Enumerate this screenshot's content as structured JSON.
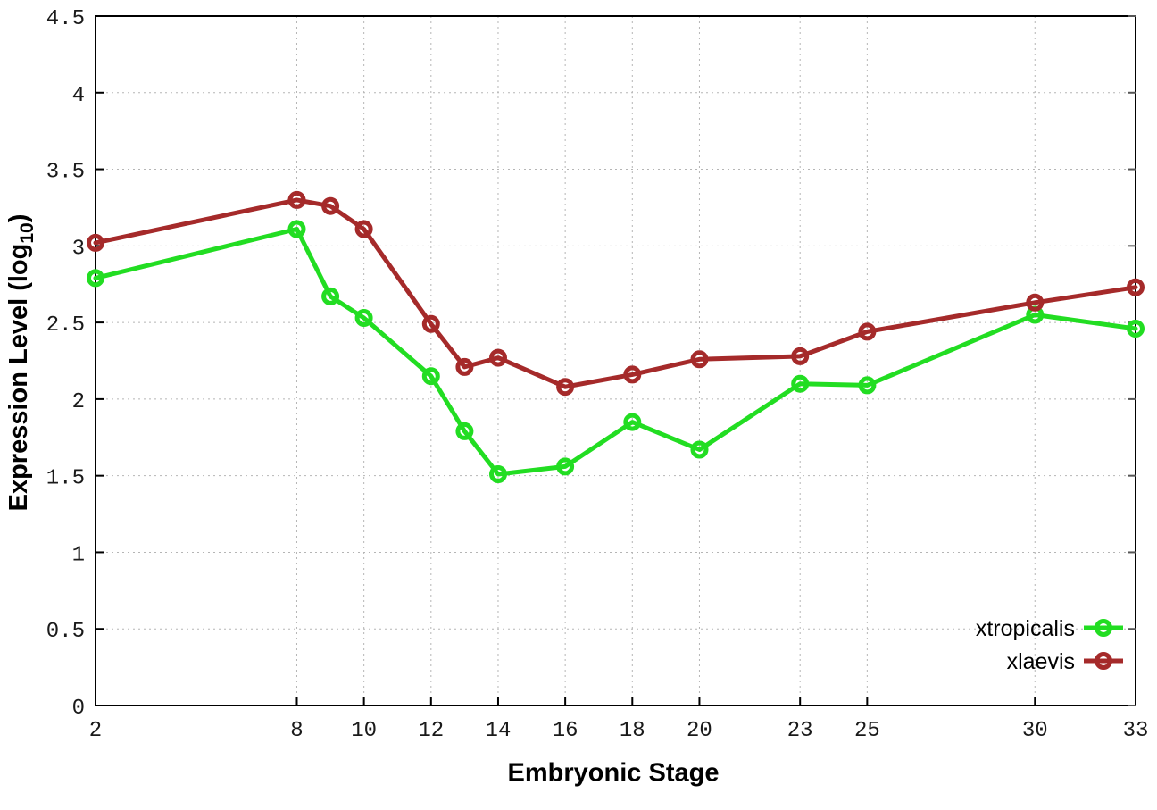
{
  "chart_data": {
    "type": "line",
    "title": "",
    "xlabel": "Embryonic Stage",
    "ylabel": "Expression Level (log10)",
    "ylabel_parts": {
      "main": "Expression Level (log",
      "sub": "10",
      "close": ")"
    },
    "x": [
      2,
      8,
      9,
      10,
      12,
      13,
      14,
      16,
      18,
      20,
      23,
      25,
      30,
      33
    ],
    "series": [
      {
        "name": "xtropicalis",
        "color": "#22dd22",
        "values": [
          2.79,
          3.11,
          2.67,
          2.53,
          2.15,
          1.79,
          1.51,
          1.56,
          1.85,
          1.67,
          2.1,
          2.09,
          2.55,
          2.46
        ]
      },
      {
        "name": "xlaevis",
        "color": "#a52a2a",
        "values": [
          3.02,
          3.3,
          3.26,
          3.11,
          2.49,
          2.21,
          2.27,
          2.08,
          2.16,
          2.26,
          2.28,
          2.44,
          2.63,
          2.73
        ]
      }
    ],
    "xlim": [
      2,
      33
    ],
    "ylim": [
      0,
      4.5
    ],
    "x_ticks": {
      "values": [
        2,
        8,
        10,
        12,
        14,
        16,
        18,
        20,
        23,
        25,
        30,
        33
      ],
      "labels": [
        "2",
        "8",
        "10",
        "12",
        "14",
        "16",
        "18",
        "20",
        "23",
        "25",
        "30",
        "33"
      ]
    },
    "y_ticks": {
      "values": [
        0,
        0.5,
        1,
        1.5,
        2,
        2.5,
        3,
        3.5,
        4,
        4.5
      ],
      "labels": [
        "0",
        "0.5",
        "1",
        "1.5",
        "2",
        "2.5",
        "3",
        "3.5",
        "4",
        "4.5"
      ]
    },
    "grid": true,
    "grid_color": "#b5b5b5",
    "axis_color": "#000000",
    "legend_position": "inside-bottom-right",
    "legend": [
      "xtropicalis",
      "xlaevis"
    ]
  }
}
